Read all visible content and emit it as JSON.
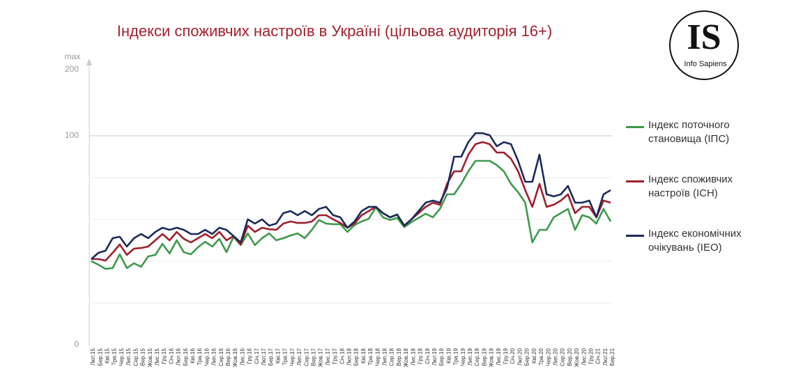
{
  "chart_data": {
    "type": "line",
    "title": "Індекси споживчих настроїв в Україні (цільова аудиторія 16+)",
    "logo": {
      "mark": "IS",
      "name": "Info Sapiens"
    },
    "y_axis_label": "max",
    "categories": [
      "Лют.15",
      "Бер.15",
      "Кві.15",
      "Тра.15",
      "Чер.15",
      "Лип.15",
      "Сер.15",
      "Вер.15",
      "Жов.15",
      "Лис.15",
      "Гру.15",
      "Січ.16",
      "Лют.16",
      "Бер.16",
      "Кві.16",
      "Тра.16",
      "Чер.16",
      "Лип.16",
      "Сер.16",
      "Вер.16",
      "Жов.16",
      "Лис.16",
      "Гру.16",
      "Січ.17",
      "Лют.17",
      "Бер.17",
      "Кві.17",
      "Тра.17",
      "Чер.17",
      "Лип.17",
      "Сер.17",
      "Вер.17",
      "Жов.17",
      "Лис.17",
      "Гру.17",
      "Січ.18",
      "Лют.18",
      "Бер.18",
      "Кві.18",
      "Тра.18",
      "Чер.18",
      "Лип.18",
      "Сер.18",
      "Вер.18",
      "Жов.18",
      "Лис.18",
      "Гру.18",
      "Січ.19",
      "Лют.19",
      "Бер.19",
      "Кві.19",
      "Тра.19",
      "Чер.19",
      "Лип.19",
      "Сер.19",
      "Вер.19",
      "Жов.19",
      "Лис.19",
      "Гру.19",
      "Січ.20",
      "Лют.20",
      "Бер.20",
      "Кві.20",
      "Тра.20",
      "Чер.20",
      "Лип.20",
      "Сер.20",
      "Вер.20",
      "Жов.20",
      "Лис.20",
      "Гру.20",
      "Січ.21",
      "Лют.21",
      "Бер.21"
    ],
    "series": [
      {
        "name": "Індекс поточного становища (ІПС)",
        "color": "#3d9a4a",
        "values": [
          40,
          38.3,
          36.3,
          36.7,
          43.3,
          36.7,
          39,
          37.3,
          42.3,
          43,
          48.3,
          43.7,
          50,
          44.3,
          43.3,
          46.7,
          49.3,
          47,
          50.7,
          44.3,
          51.7,
          47.7,
          53.3,
          47.7,
          51,
          53.3,
          50,
          51,
          52.3,
          53.3,
          51,
          55,
          59.7,
          58,
          57.7,
          57.7,
          54,
          57.3,
          59,
          60.3,
          65.7,
          61,
          59.7,
          60.7,
          56.3,
          58.7,
          60.7,
          62.7,
          61,
          65,
          72,
          72,
          77,
          83,
          88,
          88,
          88,
          86,
          83,
          77,
          73,
          68,
          49,
          55,
          55,
          61,
          63,
          65,
          55,
          62,
          61,
          58,
          65,
          59
        ]
      },
      {
        "name": "Індекс споживчих настроїв (ІСН)",
        "color": "#9e1f2b",
        "values": [
          41,
          41,
          40.3,
          44,
          48,
          43,
          46,
          46.3,
          47,
          50,
          53,
          50,
          54,
          50.7,
          49,
          51,
          53,
          51,
          54,
          50,
          52,
          48,
          57,
          54,
          56,
          55.3,
          55,
          58,
          59,
          58.3,
          58.3,
          59,
          62,
          62,
          60,
          58.3,
          56,
          58,
          62,
          64,
          66,
          63,
          61,
          62.3,
          57,
          60,
          63,
          66,
          68,
          67,
          77,
          83,
          83,
          91,
          96,
          97,
          96,
          92,
          92,
          89,
          83,
          74,
          66,
          77,
          66,
          67,
          69,
          72,
          63,
          66,
          66,
          61,
          69,
          68
        ]
      },
      {
        "name": "Індекс економічних очікувань (ІЕО)",
        "color": "#1b2a5c",
        "values": [
          41,
          44,
          45,
          51,
          51.7,
          47,
          51,
          53,
          51,
          54,
          56,
          55,
          56,
          55,
          53,
          53,
          55,
          53,
          56,
          55,
          52,
          49,
          60,
          58,
          60,
          57,
          58,
          63,
          64,
          62,
          64,
          62,
          65,
          66,
          62,
          61,
          56,
          59,
          64,
          66,
          66,
          63,
          61,
          62.3,
          57,
          60,
          64,
          68,
          69,
          68,
          75,
          90,
          90,
          97,
          104,
          104,
          101,
          95,
          97,
          96,
          88,
          78,
          78,
          91,
          72,
          71,
          72,
          76,
          68,
          68,
          69,
          61,
          72,
          74
        ]
      }
    ],
    "ylim": [
      0,
      200
    ],
    "yticks": [
      0,
      100,
      200
    ],
    "minor_yticks": [
      20,
      40,
      60,
      80
    ],
    "grid": true
  }
}
